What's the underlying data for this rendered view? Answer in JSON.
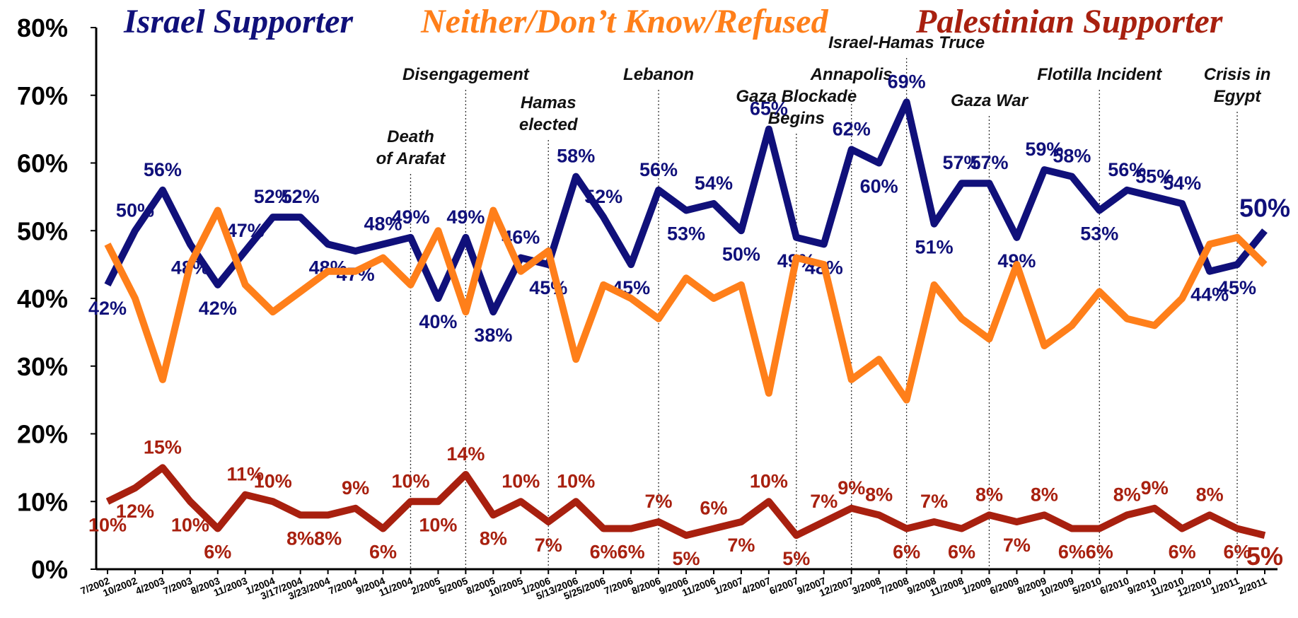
{
  "chart_data": {
    "type": "line",
    "categories": [
      "7/2002",
      "10/2002",
      "4/2003",
      "7/2003",
      "8/2003",
      "11/2003",
      "1/2004",
      "3/17/2004",
      "3/23/2004",
      "7/2004",
      "9/2004",
      "11/2004",
      "2/2005",
      "5/2005",
      "8/2005",
      "10/2005",
      "1/2006",
      "5/13/2006",
      "5/25/2006",
      "7/2006",
      "8/2006",
      "9/2006",
      "11/2006",
      "1/2007",
      "4/2007",
      "6/2007",
      "9/2007",
      "12/2007",
      "3/2008",
      "7/2008",
      "9/2008",
      "11/2008",
      "1/2009",
      "6/2009",
      "8/2009",
      "10/2009",
      "5/2010",
      "6/2010",
      "9/2010",
      "11/2010",
      "12/2010",
      "1/2011",
      "2/2011"
    ],
    "series": [
      {
        "name": "Israel Supporter",
        "color": "#10107a",
        "values": [
          42,
          50,
          56,
          48,
          42,
          47,
          52,
          52,
          48,
          47,
          48,
          49,
          40,
          49,
          38,
          46,
          45,
          58,
          52,
          45,
          56,
          53,
          54,
          50,
          65,
          49,
          48,
          62,
          60,
          69,
          51,
          57,
          57,
          49,
          59,
          58,
          53,
          56,
          55,
          54,
          44,
          45,
          50
        ],
        "value_labels": [
          "42%",
          "50%",
          "56%",
          "48%",
          "42%",
          "47%",
          "52%",
          "52%",
          "48%",
          "47%",
          "48%",
          "49%",
          "40%",
          "49%",
          "38%",
          "46%",
          "45%",
          "58%",
          "52%",
          "45%",
          "56%",
          "53%",
          "54%",
          "50%",
          "65%",
          "49%",
          "48%",
          "62%",
          "60%",
          "69%",
          "51%",
          "57%",
          "57%",
          "49%",
          "59%",
          "58%",
          "53%",
          "56%",
          "55%",
          "54%",
          "44%",
          "45%",
          "50%"
        ]
      },
      {
        "name": "Neither/Don’t Know/Refused",
        "color": "#ff7f1a",
        "values": [
          48,
          40,
          28,
          45,
          53,
          42,
          38,
          41,
          44,
          44,
          46,
          42,
          50,
          38,
          53,
          44,
          47,
          31,
          42,
          40,
          37,
          43,
          40,
          42,
          26,
          46,
          45,
          28,
          31,
          25,
          42,
          37,
          34,
          45,
          33,
          36,
          41,
          37,
          36,
          40,
          48,
          49,
          45
        ]
      },
      {
        "name": "Palestinian Supporter",
        "color": "#a8200f",
        "values": [
          10,
          12,
          15,
          10,
          6,
          11,
          10,
          8,
          8,
          9,
          6,
          10,
          10,
          14,
          8,
          10,
          7,
          10,
          6,
          6,
          7,
          5,
          6,
          7,
          10,
          5,
          7,
          9,
          8,
          6,
          7,
          6,
          8,
          7,
          8,
          6,
          6,
          8,
          9,
          6,
          8,
          6,
          5
        ],
        "value_labels": [
          "10%",
          "12%",
          "15%",
          "10%",
          "6%",
          "11%",
          "10%",
          "8%",
          "8%",
          "9%",
          "6%",
          "10%",
          "10%",
          "14%",
          "8%",
          "10%",
          "7%",
          "10%",
          "6%",
          "6%",
          "7%",
          "5%",
          "6%",
          "7%",
          "10%",
          "5%",
          "7%",
          "9%",
          "8%",
          "6%",
          "7%",
          "6%",
          "8%",
          "7%",
          "8%",
          "6%",
          "6%",
          "8%",
          "9%",
          "6%",
          "8%",
          "6%",
          "5%"
        ]
      }
    ],
    "ylim": [
      0,
      80
    ],
    "yticks": [
      {
        "value": 0,
        "label": "0%"
      },
      {
        "value": 10,
        "label": "10%"
      },
      {
        "value": 20,
        "label": "20%"
      },
      {
        "value": 30,
        "label": "30%"
      },
      {
        "value": 40,
        "label": "40%"
      },
      {
        "value": 50,
        "label": "50%"
      },
      {
        "value": 60,
        "label": "60%"
      },
      {
        "value": 70,
        "label": "70%"
      },
      {
        "value": 80,
        "label": "80%"
      }
    ],
    "annotations": [
      {
        "lines": [
          "Death",
          "of Arafat"
        ],
        "x": "11/2004"
      },
      {
        "lines": [
          "Disengagement"
        ],
        "x": "5/2005"
      },
      {
        "lines": [
          "Hamas",
          "elected"
        ],
        "x": "1/2006"
      },
      {
        "lines": [
          "Lebanon"
        ],
        "x": "8/2006"
      },
      {
        "lines": [
          "Gaza Blockade",
          "Begins"
        ],
        "x": "6/2007"
      },
      {
        "lines": [
          "Annapolis"
        ],
        "x": "12/2007"
      },
      {
        "lines": [
          "Israel-Hamas Truce"
        ],
        "x": "7/2008"
      },
      {
        "lines": [
          "Gaza War"
        ],
        "x": "1/2009"
      },
      {
        "lines": [
          "Flotilla Incident"
        ],
        "x": "5/2010"
      },
      {
        "lines": [
          "Crisis in",
          "Egypt"
        ],
        "x": "1/2011"
      }
    ]
  }
}
